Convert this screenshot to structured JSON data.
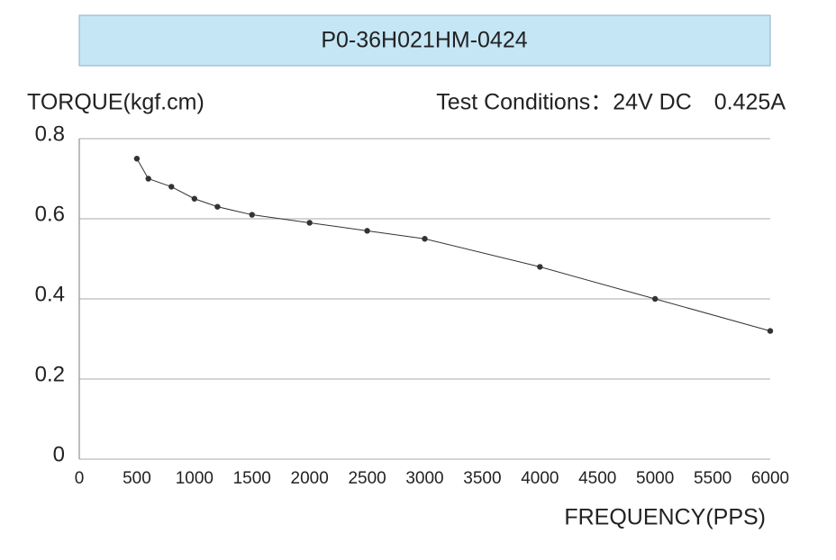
{
  "chart_data": {
    "type": "line",
    "title": "P0-36H021HM-0424",
    "y_label": "TORQUE(kgf.cm)",
    "x_label": "FREQUENCY(PPS)",
    "annotation": "Test Conditions：24V DC　0.425A",
    "x": [
      500,
      600,
      800,
      1000,
      1200,
      1500,
      2000,
      2500,
      3000,
      4000,
      5000,
      6000
    ],
    "series": [
      {
        "name": "TORQUE",
        "color": "#333333",
        "values": [
          0.75,
          0.7,
          0.68,
          0.65,
          0.63,
          0.61,
          0.59,
          0.57,
          0.55,
          0.48,
          0.4,
          0.32
        ]
      }
    ],
    "xlim": [
      0,
      6000
    ],
    "xticks": [
      0,
      500,
      1000,
      1500,
      2000,
      2500,
      3000,
      3500,
      4000,
      4500,
      5000,
      5500,
      6000
    ],
    "ylim": [
      0,
      0.8
    ],
    "yticks": [
      0,
      0.2,
      0.4,
      0.6,
      0.8
    ],
    "grid": true
  }
}
